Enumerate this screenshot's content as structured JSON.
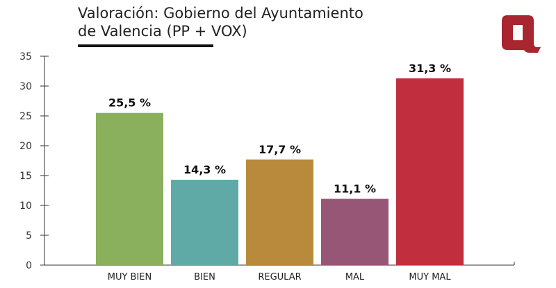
{
  "title_lines": [
    "Valoración: Gobierno del Ayuntamiento",
    "de Valencia (PP + VOX)"
  ],
  "colors": {
    "title": "#222222",
    "axis": "#333333",
    "brand": "#a8262f"
  },
  "logo": {
    "icon": "q-logo-icon"
  },
  "chart_data": {
    "type": "bar",
    "categories": [
      "MUY BIEN",
      "BIEN",
      "REGULAR",
      "MAL",
      "MUY MAL"
    ],
    "values": [
      25.5,
      14.3,
      17.7,
      11.1,
      31.3
    ],
    "value_labels": [
      "25,5 %",
      "14,3 %",
      "17,7 %",
      "11,1 %",
      "31,3 %"
    ],
    "colors": [
      "#8bb05d",
      "#5faaa7",
      "#b98a3c",
      "#985677",
      "#c12f3e"
    ],
    "ylim": [
      0,
      35
    ],
    "yticks": [
      0,
      5,
      10,
      15,
      20,
      25,
      30,
      35
    ],
    "ytick_labels": [
      "0",
      "5",
      "10",
      "15",
      "20",
      "25",
      "30",
      "35"
    ],
    "grid": false,
    "legend": "none",
    "title": "Valoración: Gobierno del Ayuntamiento de Valencia (PP + VOX)",
    "xlabel": "",
    "ylabel": ""
  }
}
